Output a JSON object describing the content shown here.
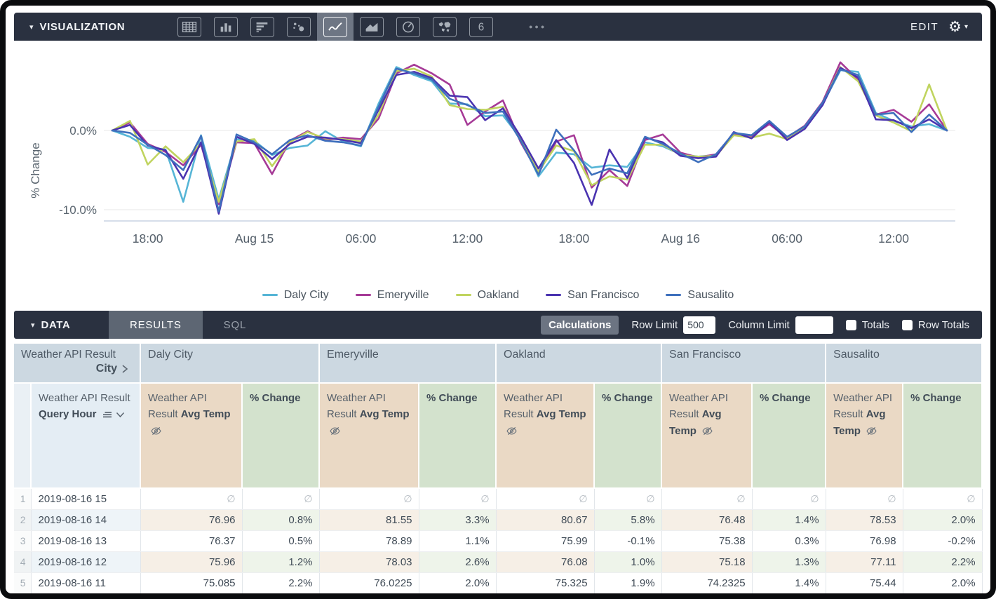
{
  "visualization_bar": {
    "title": "VISUALIZATION",
    "collapse_caret": "▾",
    "viz_types": [
      {
        "name": "table-chart",
        "selected": false
      },
      {
        "name": "column-chart",
        "selected": false
      },
      {
        "name": "bar-chart-horizontal",
        "selected": false
      },
      {
        "name": "scatter-chart",
        "selected": false
      },
      {
        "name": "line-chart",
        "selected": true
      },
      {
        "name": "area-chart",
        "selected": false
      },
      {
        "name": "pie-chart",
        "selected": false
      },
      {
        "name": "map-chart",
        "selected": false
      },
      {
        "name": "single-value-chart",
        "selected": false
      }
    ],
    "overflow_icon": "●●●",
    "edit_label": "EDIT",
    "gear_icon": "⚙",
    "gear_caret": "▾"
  },
  "chart_data": {
    "type": "line",
    "ylabel": "% Change",
    "yticks": [
      {
        "value": 0,
        "label": "0.0%"
      },
      {
        "value": -10,
        "label": "-10.0%"
      }
    ],
    "ylim": [
      -12.5,
      9.8
    ],
    "x_hours_span": "2019-08-14 16:00 to 2019-08-16 15:00",
    "x_point_count": 48,
    "xticks": [
      {
        "index": 2,
        "label": "18:00"
      },
      {
        "index": 8,
        "label": "Aug 15"
      },
      {
        "index": 14,
        "label": "06:00"
      },
      {
        "index": 20,
        "label": "12:00"
      },
      {
        "index": 26,
        "label": "18:00"
      },
      {
        "index": 32,
        "label": "Aug 16"
      },
      {
        "index": 38,
        "label": "06:00"
      },
      {
        "index": 44,
        "label": "12:00"
      }
    ],
    "grid": "horizontal",
    "legend_position": "bottom",
    "series": [
      {
        "name": "Daly City",
        "color": "#56b5d6",
        "values": [
          0,
          -0.8,
          -2.2,
          -2.4,
          -9.0,
          -0.6,
          -8.7,
          -1.1,
          -1.3,
          -3.1,
          -2.2,
          -1.9,
          -0.1,
          -1.4,
          -2.0,
          3.4,
          8.0,
          7.0,
          6.2,
          3.4,
          3.3,
          1.8,
          1.9,
          -1.0,
          -5.8,
          -2.8,
          -3.0,
          -4.7,
          -4.4,
          -4.6,
          -1.5,
          -2.0,
          -3.0,
          -3.3,
          -3.1,
          -0.5,
          -0.8,
          0.9,
          -1.0,
          0.4,
          3.3,
          7.6,
          7.4,
          2.2,
          1.2,
          0.5,
          0.8,
          0
        ]
      },
      {
        "name": "Emeryville",
        "color": "#a63a97",
        "values": [
          0,
          1.0,
          -1.7,
          -2.7,
          -4.4,
          -1.8,
          -9.3,
          -1.5,
          -1.6,
          -5.5,
          -1.3,
          -0.1,
          -1.2,
          -0.9,
          -1.1,
          1.5,
          7.2,
          8.3,
          7.2,
          5.8,
          0.7,
          2.4,
          3.8,
          -1.5,
          -5.4,
          -1.4,
          -0.6,
          -7.2,
          -5.0,
          -7.0,
          -1.2,
          -0.5,
          -2.8,
          -3.4,
          -3.0,
          -0.4,
          -0.7,
          0.8,
          -0.9,
          0.6,
          3.6,
          8.6,
          6.4,
          2.0,
          2.6,
          1.1,
          3.3,
          0
        ]
      },
      {
        "name": "Oakland",
        "color": "#c0d45f",
        "values": [
          0,
          1.2,
          -4.3,
          -2.0,
          -4.0,
          -1.6,
          -9.0,
          -1.4,
          -1.1,
          -4.5,
          -1.5,
          -0.2,
          -1.0,
          -1.1,
          -1.4,
          2.0,
          7.5,
          7.8,
          6.8,
          3.2,
          2.7,
          2.6,
          3.0,
          -1.2,
          -5.2,
          -1.9,
          -2.6,
          -6.9,
          -5.8,
          -6.2,
          -1.8,
          -1.8,
          -3.1,
          -3.3,
          -3.2,
          -0.6,
          -0.9,
          -0.4,
          -1.1,
          0.3,
          3.4,
          8.0,
          6.2,
          1.9,
          1.0,
          -0.1,
          5.8,
          0
        ]
      },
      {
        "name": "San Francisco",
        "color": "#4a33b0",
        "values": [
          0,
          0.7,
          -1.9,
          -2.5,
          -6.1,
          -1.5,
          -10.5,
          -0.8,
          -1.7,
          -3.6,
          -1.7,
          -0.8,
          -0.9,
          -1.2,
          -1.6,
          2.6,
          7.0,
          7.4,
          6.6,
          4.4,
          4.2,
          1.3,
          2.8,
          -0.8,
          -4.8,
          -1.2,
          -4.1,
          -9.4,
          -2.4,
          -6.0,
          -0.9,
          -1.5,
          -3.2,
          -3.5,
          -3.3,
          -0.2,
          -1.0,
          1.1,
          -1.2,
          0.2,
          3.2,
          7.9,
          6.7,
          1.4,
          1.3,
          0.3,
          1.4,
          0
        ]
      },
      {
        "name": "Sausalito",
        "color": "#3e70bd",
        "values": [
          0,
          -0.3,
          -1.8,
          -3.1,
          -5.0,
          -0.7,
          -10.2,
          -0.5,
          -1.5,
          -3.0,
          -1.2,
          -0.6,
          -1.3,
          -1.5,
          -1.9,
          3.0,
          7.8,
          7.2,
          6.4,
          4.0,
          3.2,
          2.2,
          2.4,
          -1.3,
          -5.6,
          0.1,
          -2.5,
          -5.6,
          -4.8,
          -5.4,
          -0.8,
          -1.7,
          -2.9,
          -4.0,
          -3.0,
          -0.3,
          -0.6,
          1.2,
          -0.8,
          0.5,
          3.5,
          7.7,
          7.0,
          2.0,
          2.2,
          -0.2,
          2.0,
          0
        ]
      }
    ]
  },
  "data_bar": {
    "title": "DATA",
    "collapse_caret": "▾",
    "tabs": [
      {
        "label": "RESULTS",
        "active": true
      },
      {
        "label": "SQL",
        "active": false
      }
    ],
    "calculations_label": "Calculations",
    "row_limit_label": "Row Limit",
    "row_limit_value": "500",
    "column_limit_label": "Column Limit",
    "column_limit_value": "",
    "totals_label": "Totals",
    "totals_checked": false,
    "row_totals_label": "Row Totals",
    "row_totals_checked": false
  },
  "table": {
    "null_symbol": "∅",
    "group_header": {
      "first_line1": "Weather API Result",
      "first_line2": "City",
      "cities": [
        "Daly City",
        "Emeryville",
        "Oakland",
        "San Francisco",
        "Sausalito"
      ]
    },
    "measure_header": {
      "hour_prefix": "Weather API Result ",
      "hour_bold": "Query Hour",
      "temp_prefix": "Weather API Result ",
      "temp_bold": "Avg Temp",
      "pct_label": "% Change"
    },
    "col_widths": {
      "row_num": 24,
      "hour": 156,
      "cities": [
        [
          145,
          110
        ],
        [
          142,
          110
        ],
        [
          140,
          96
        ],
        [
          129,
          105
        ],
        [
          110,
          113
        ]
      ]
    },
    "rows": [
      {
        "num": "1",
        "hour": "2019-08-16 15",
        "values": [
          null,
          null,
          null,
          null,
          null,
          null,
          null,
          null,
          null,
          null
        ]
      },
      {
        "num": "2",
        "hour": "2019-08-16 14",
        "values": [
          "76.96",
          "0.8%",
          "81.55",
          "3.3%",
          "80.67",
          "5.8%",
          "76.48",
          "1.4%",
          "78.53",
          "2.0%"
        ]
      },
      {
        "num": "3",
        "hour": "2019-08-16 13",
        "values": [
          "76.37",
          "0.5%",
          "78.89",
          "1.1%",
          "75.99",
          "-0.1%",
          "75.38",
          "0.3%",
          "76.98",
          "-0.2%"
        ]
      },
      {
        "num": "4",
        "hour": "2019-08-16 12",
        "values": [
          "75.96",
          "1.2%",
          "78.03",
          "2.6%",
          "76.08",
          "1.0%",
          "75.18",
          "1.3%",
          "77.11",
          "2.2%"
        ]
      },
      {
        "num": "5",
        "hour": "2019-08-16 11",
        "values": [
          "75.085",
          "2.2%",
          "76.0225",
          "2.0%",
          "75.325",
          "1.9%",
          "74.2325",
          "1.4%",
          "75.44",
          "2.0%"
        ]
      }
    ]
  }
}
